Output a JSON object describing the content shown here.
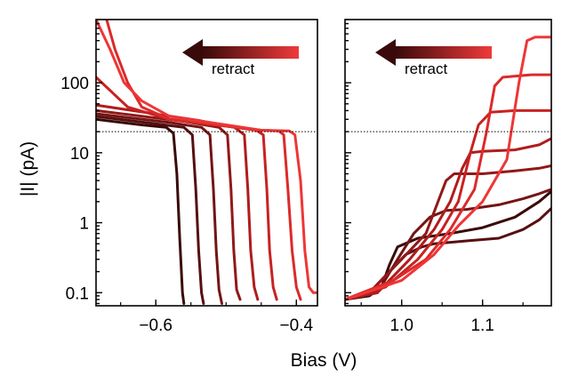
{
  "chart_data": {
    "type": "line",
    "y_scale": "log",
    "ylabel": "|I| (pA)",
    "xlabel": "Bias (V)",
    "ylim": [
      0.065,
      800
    ],
    "yticks": [
      {
        "value": 0.1,
        "label": "0.1"
      },
      {
        "value": 1,
        "label": "1"
      },
      {
        "value": 10,
        "label": "10"
      },
      {
        "value": 100,
        "label": "100"
      }
    ],
    "reference_line": {
      "y": 20,
      "style": "dotted"
    },
    "colors": {
      "axis": "#000000",
      "arrow_dark": "#3a0a0a",
      "arrow_light": "#f03a3a",
      "refline": "#000000"
    },
    "panels": [
      {
        "name": "left",
        "xlim": [
          -0.685,
          -0.37
        ],
        "xticks": [
          {
            "value": -0.6,
            "label": "−0.6"
          },
          {
            "value": -0.4,
            "label": "−0.4"
          }
        ],
        "annotation": "retract",
        "series": [
          {
            "name": "curve-1",
            "color": "#3a0a0a",
            "points": [
              [
                -0.685,
                30
              ],
              [
                -0.62,
                25
              ],
              [
                -0.585,
                23
              ],
              [
                -0.575,
                19
              ],
              [
                -0.57,
                5
              ],
              [
                -0.566,
                0.6
              ],
              [
                -0.562,
                0.1
              ],
              [
                -0.56,
                0.07
              ]
            ]
          },
          {
            "name": "curve-2",
            "color": "#561010",
            "points": [
              [
                -0.685,
                33
              ],
              [
                -0.6,
                26
              ],
              [
                -0.56,
                23
              ],
              [
                -0.548,
                18
              ],
              [
                -0.543,
                3
              ],
              [
                -0.539,
                0.4
              ],
              [
                -0.535,
                0.1
              ],
              [
                -0.532,
                0.07
              ]
            ]
          },
          {
            "name": "curve-3",
            "color": "#741414",
            "points": [
              [
                -0.685,
                36
              ],
              [
                -0.58,
                27
              ],
              [
                -0.535,
                23
              ],
              [
                -0.523,
                18
              ],
              [
                -0.518,
                3
              ],
              [
                -0.514,
                0.4
              ],
              [
                -0.51,
                0.11
              ],
              [
                -0.506,
                0.07
              ]
            ]
          },
          {
            "name": "curve-4",
            "color": "#921818",
            "points": [
              [
                -0.685,
                40
              ],
              [
                -0.56,
                28
              ],
              [
                -0.51,
                23
              ],
              [
                -0.498,
                18
              ],
              [
                -0.493,
                3
              ],
              [
                -0.489,
                0.4
              ],
              [
                -0.485,
                0.11
              ],
              [
                -0.48,
                0.08
              ]
            ]
          },
          {
            "name": "curve-5",
            "color": "#b01c1c",
            "points": [
              [
                -0.685,
                48
              ],
              [
                -0.54,
                29
              ],
              [
                -0.488,
                23
              ],
              [
                -0.474,
                18
              ],
              [
                -0.469,
                3
              ],
              [
                -0.465,
                0.4
              ],
              [
                -0.46,
                0.12
              ],
              [
                -0.455,
                0.08
              ]
            ]
          },
          {
            "name": "curve-6",
            "color": "#c82222",
            "points": [
              [
                -0.685,
                120
              ],
              [
                -0.64,
                45
              ],
              [
                -0.58,
                30
              ],
              [
                -0.5,
                24
              ],
              [
                -0.457,
                21
              ],
              [
                -0.447,
                18
              ],
              [
                -0.442,
                3
              ],
              [
                -0.438,
                0.4
              ],
              [
                -0.433,
                0.12
              ],
              [
                -0.428,
                0.08
              ]
            ]
          },
          {
            "name": "curve-7",
            "color": "#dc2a2a",
            "points": [
              [
                -0.67,
                800
              ],
              [
                -0.658,
                300
              ],
              [
                -0.64,
                100
              ],
              [
                -0.62,
                45
              ],
              [
                -0.58,
                30
              ],
              [
                -0.5,
                24
              ],
              [
                -0.45,
                21
              ],
              [
                -0.425,
                20.5
              ],
              [
                -0.418,
                18
              ],
              [
                -0.412,
                3
              ],
              [
                -0.406,
                0.4
              ],
              [
                -0.4,
                0.12
              ],
              [
                -0.394,
                0.08
              ]
            ]
          },
          {
            "name": "curve-8",
            "color": "#ee3636",
            "points": [
              [
                -0.685,
                800
              ],
              [
                -0.665,
                300
              ],
              [
                -0.645,
                100
              ],
              [
                -0.62,
                55
              ],
              [
                -0.58,
                33
              ],
              [
                -0.5,
                25
              ],
              [
                -0.45,
                21
              ],
              [
                -0.41,
                20.5
              ],
              [
                -0.402,
                18
              ],
              [
                -0.394,
                4
              ],
              [
                -0.388,
                0.4
              ],
              [
                -0.382,
                0.12
              ],
              [
                -0.376,
                0.1
              ],
              [
                -0.37,
                0.1
              ]
            ]
          }
        ]
      },
      {
        "name": "right",
        "xlim": [
          0.93,
          1.185
        ],
        "xticks": [
          {
            "value": 1.0,
            "label": "1.0"
          },
          {
            "value": 1.1,
            "label": "1.1"
          }
        ],
        "annotation": "retract",
        "series": [
          {
            "name": "curve-1",
            "color": "#3a0a0a",
            "points": [
              [
                0.93,
                0.08
              ],
              [
                0.96,
                0.09
              ],
              [
                0.975,
                0.12
              ],
              [
                0.985,
                0.25
              ],
              [
                0.995,
                0.45
              ],
              [
                1.02,
                0.6
              ],
              [
                1.06,
                0.7
              ],
              [
                1.1,
                0.85
              ],
              [
                1.14,
                1.2
              ],
              [
                1.17,
                2
              ],
              [
                1.185,
                2.8
              ]
            ]
          },
          {
            "name": "curve-2",
            "color": "#561010",
            "points": [
              [
                0.93,
                0.08
              ],
              [
                0.96,
                0.1
              ],
              [
                0.985,
                0.2
              ],
              [
                1.005,
                0.35
              ],
              [
                1.025,
                0.45
              ],
              [
                1.04,
                0.5
              ],
              [
                1.08,
                0.55
              ],
              [
                1.12,
                0.6
              ],
              [
                1.15,
                0.8
              ],
              [
                1.17,
                1.1
              ],
              [
                1.185,
                1.6
              ]
            ]
          },
          {
            "name": "curve-3",
            "color": "#741414",
            "points": [
              [
                0.93,
                0.08
              ],
              [
                0.97,
                0.1
              ],
              [
                0.995,
                0.3
              ],
              [
                1.015,
                0.7
              ],
              [
                1.035,
                1.2
              ],
              [
                1.055,
                1.5
              ],
              [
                1.08,
                1.55
              ],
              [
                1.12,
                1.8
              ],
              [
                1.15,
                2.2
              ],
              [
                1.17,
                2.6
              ],
              [
                1.185,
                3
              ]
            ]
          },
          {
            "name": "curve-4",
            "color": "#921818",
            "points": [
              [
                0.93,
                0.08
              ],
              [
                0.96,
                0.1
              ],
              [
                1.0,
                0.3
              ],
              [
                1.03,
                0.7
              ],
              [
                1.045,
                2
              ],
              [
                1.055,
                4
              ],
              [
                1.065,
                5
              ],
              [
                1.1,
                5
              ],
              [
                1.14,
                5.5
              ],
              [
                1.17,
                6
              ],
              [
                1.185,
                6.5
              ]
            ]
          },
          {
            "name": "curve-5",
            "color": "#b01c1c",
            "points": [
              [
                0.93,
                0.08
              ],
              [
                0.97,
                0.1
              ],
              [
                1.01,
                0.3
              ],
              [
                1.04,
                0.8
              ],
              [
                1.06,
                2
              ],
              [
                1.075,
                6
              ],
              [
                1.085,
                10
              ],
              [
                1.1,
                10.5
              ],
              [
                1.14,
                11
              ],
              [
                1.17,
                13
              ],
              [
                1.185,
                16
              ]
            ]
          },
          {
            "name": "curve-6",
            "color": "#c82222",
            "points": [
              [
                0.93,
                0.08
              ],
              [
                0.98,
                0.12
              ],
              [
                1.02,
                0.3
              ],
              [
                1.05,
                0.8
              ],
              [
                1.07,
                2
              ],
              [
                1.085,
                10
              ],
              [
                1.095,
                25
              ],
              [
                1.11,
                38
              ],
              [
                1.14,
                40
              ],
              [
                1.185,
                40
              ]
            ]
          },
          {
            "name": "curve-7",
            "color": "#dc2a2a",
            "points": [
              [
                0.93,
                0.08
              ],
              [
                0.99,
                0.15
              ],
              [
                1.03,
                0.3
              ],
              [
                1.06,
                0.8
              ],
              [
                1.09,
                3
              ],
              [
                1.105,
                20
              ],
              [
                1.115,
                90
              ],
              [
                1.125,
                120
              ],
              [
                1.16,
                130
              ],
              [
                1.185,
                130
              ]
            ]
          },
          {
            "name": "curve-8",
            "color": "#ee3636",
            "points": [
              [
                0.93,
                0.08
              ],
              [
                1.0,
                0.15
              ],
              [
                1.04,
                0.35
              ],
              [
                1.07,
                0.9
              ],
              [
                1.1,
                2
              ],
              [
                1.13,
                8
              ],
              [
                1.145,
                100
              ],
              [
                1.155,
                400
              ],
              [
                1.165,
                450
              ],
              [
                1.185,
                450
              ]
            ]
          }
        ]
      }
    ]
  }
}
